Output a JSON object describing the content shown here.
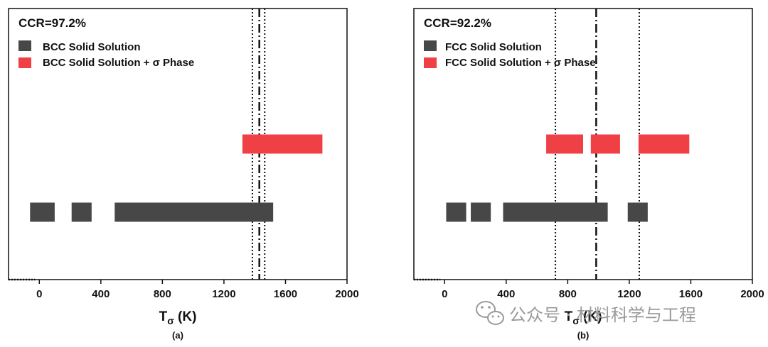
{
  "chart_data": [
    {
      "type": "bar",
      "panel_label": "(a)",
      "annotation": "CCR=97.2%",
      "xlabel_main": "T",
      "xlabel_sub": "σ",
      "xlabel_unit": " (K)",
      "xlim": [
        -200,
        2000
      ],
      "xticks": [
        0,
        400,
        800,
        1200,
        1600,
        2000
      ],
      "legend": [
        {
          "label": "BCC Solid Solution",
          "color": "#474747"
        },
        {
          "label": "BCC Solid Solution + σ Phase",
          "color": "#ef4145"
        }
      ],
      "series": [
        {
          "name": "BCC Solid Solution",
          "color": "#474747",
          "level": "lower",
          "intervals": [
            [
              -60,
              100
            ],
            [
              210,
              340
            ],
            [
              490,
              1520
            ]
          ]
        },
        {
          "name": "BCC Solid Solution + σ Phase",
          "color": "#ef4145",
          "level": "upper",
          "intervals": [
            [
              1320,
              1840
            ]
          ]
        }
      ],
      "vlines": [
        {
          "x": 1385,
          "style": "dotted"
        },
        {
          "x": 1430,
          "style": "dashdot"
        },
        {
          "x": 1465,
          "style": "dotted"
        }
      ]
    },
    {
      "type": "bar",
      "panel_label": "(b)",
      "annotation": "CCR=92.2%",
      "xlabel_main": "T",
      "xlabel_sub": "σ",
      "xlabel_unit": " (K)",
      "xlim": [
        -200,
        2000
      ],
      "xticks": [
        0,
        400,
        800,
        1200,
        1600,
        2000
      ],
      "legend": [
        {
          "label": "FCC Solid Solution",
          "color": "#474747"
        },
        {
          "label": "FCC Solid Solution + σ Phase",
          "color": "#ef4145"
        }
      ],
      "series": [
        {
          "name": "FCC Solid Solution",
          "color": "#474747",
          "level": "lower",
          "intervals": [
            [
              10,
              140
            ],
            [
              170,
              300
            ],
            [
              380,
              1060
            ],
            [
              1190,
              1320
            ]
          ]
        },
        {
          "name": "FCC Solid Solution + σ Phase",
          "color": "#ef4145",
          "level": "upper",
          "intervals": [
            [
              660,
              900
            ],
            [
              950,
              1140
            ],
            [
              1260,
              1590
            ]
          ]
        }
      ],
      "vlines": [
        {
          "x": 720,
          "style": "dotted"
        },
        {
          "x": 985,
          "style": "dashdot"
        },
        {
          "x": 1265,
          "style": "dotted"
        }
      ]
    }
  ],
  "watermark": {
    "text": "公众号 · 材料科学与工程"
  }
}
